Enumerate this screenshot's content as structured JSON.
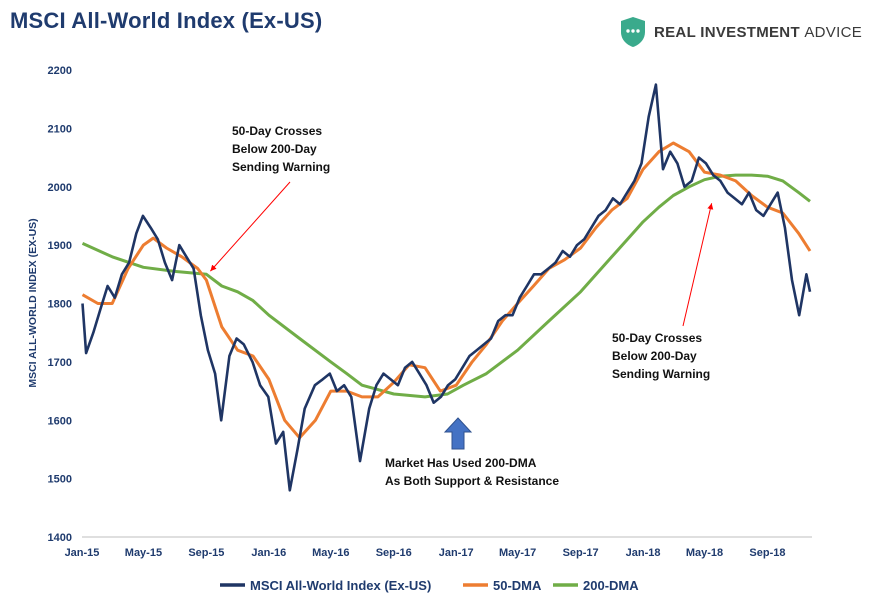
{
  "brand": {
    "name_bold": "REAL INVESTMENT",
    "name_light": "ADVICE"
  },
  "colors": {
    "index": "#1f3564",
    "dma50": "#ed7d31",
    "dma200": "#70ad47",
    "arrow": "#ff0000",
    "blue_arrow": "#4472c4",
    "text": "#1f3b6e"
  },
  "chart_data": {
    "type": "line",
    "title": "MSCI All-World Index (Ex-US)",
    "ylabel": "MSCI ALL-WORLD INDEX (EX-US)",
    "xlabel": "",
    "ylim": [
      1400,
      2200
    ],
    "yticks": [
      1400,
      1500,
      1600,
      1700,
      1800,
      1900,
      2000,
      2100,
      2200
    ],
    "xlim": [
      "2015-01",
      "2018-11"
    ],
    "xticks": [
      "Jan-15",
      "May-15",
      "Sep-15",
      "Jan-16",
      "May-16",
      "Sep-16",
      "Jan-17",
      "May-17",
      "Sep-17",
      "Jan-18",
      "May-18",
      "Sep-18"
    ],
    "grid": false,
    "legend": "bottom",
    "series": [
      {
        "name": "MSCI All-World Index (Ex-US)",
        "color": "#1f3564",
        "points": [
          [
            "2015-01-02",
            1800
          ],
          [
            "2015-01-09",
            1715
          ],
          [
            "2015-01-23",
            1750
          ],
          [
            "2015-02-06",
            1790
          ],
          [
            "2015-02-20",
            1830
          ],
          [
            "2015-03-06",
            1810
          ],
          [
            "2015-03-20",
            1850
          ],
          [
            "2015-04-03",
            1870
          ],
          [
            "2015-04-17",
            1920
          ],
          [
            "2015-04-30",
            1950
          ],
          [
            "2015-05-15",
            1930
          ],
          [
            "2015-05-29",
            1910
          ],
          [
            "2015-06-12",
            1870
          ],
          [
            "2015-06-26",
            1840
          ],
          [
            "2015-07-10",
            1900
          ],
          [
            "2015-07-24",
            1880
          ],
          [
            "2015-08-07",
            1860
          ],
          [
            "2015-08-21",
            1780
          ],
          [
            "2015-09-04",
            1720
          ],
          [
            "2015-09-18",
            1680
          ],
          [
            "2015-09-30",
            1600
          ],
          [
            "2015-10-16",
            1710
          ],
          [
            "2015-10-30",
            1740
          ],
          [
            "2015-11-13",
            1730
          ],
          [
            "2015-11-30",
            1700
          ],
          [
            "2015-12-15",
            1660
          ],
          [
            "2015-12-31",
            1640
          ],
          [
            "2016-01-15",
            1560
          ],
          [
            "2016-01-29",
            1580
          ],
          [
            "2016-02-11",
            1480
          ],
          [
            "2016-02-26",
            1550
          ],
          [
            "2016-03-11",
            1620
          ],
          [
            "2016-03-31",
            1660
          ],
          [
            "2016-04-15",
            1670
          ],
          [
            "2016-04-29",
            1680
          ],
          [
            "2016-05-13",
            1650
          ],
          [
            "2016-05-27",
            1660
          ],
          [
            "2016-06-10",
            1640
          ],
          [
            "2016-06-27",
            1530
          ],
          [
            "2016-07-15",
            1620
          ],
          [
            "2016-07-29",
            1660
          ],
          [
            "2016-08-12",
            1680
          ],
          [
            "2016-08-26",
            1670
          ],
          [
            "2016-09-09",
            1660
          ],
          [
            "2016-09-23",
            1690
          ],
          [
            "2016-10-07",
            1700
          ],
          [
            "2016-10-21",
            1680
          ],
          [
            "2016-11-04",
            1660
          ],
          [
            "2016-11-18",
            1630
          ],
          [
            "2016-12-02",
            1640
          ],
          [
            "2016-12-16",
            1660
          ],
          [
            "2016-12-30",
            1670
          ],
          [
            "2017-01-13",
            1690
          ],
          [
            "2017-01-27",
            1710
          ],
          [
            "2017-02-10",
            1720
          ],
          [
            "2017-02-24",
            1730
          ],
          [
            "2017-03-10",
            1740
          ],
          [
            "2017-03-24",
            1770
          ],
          [
            "2017-04-07",
            1780
          ],
          [
            "2017-04-21",
            1780
          ],
          [
            "2017-05-05",
            1810
          ],
          [
            "2017-05-19",
            1830
          ],
          [
            "2017-06-02",
            1850
          ],
          [
            "2017-06-16",
            1850
          ],
          [
            "2017-06-30",
            1860
          ],
          [
            "2017-07-14",
            1870
          ],
          [
            "2017-07-28",
            1890
          ],
          [
            "2017-08-11",
            1880
          ],
          [
            "2017-08-25",
            1900
          ],
          [
            "2017-09-08",
            1910
          ],
          [
            "2017-09-22",
            1930
          ],
          [
            "2017-10-06",
            1950
          ],
          [
            "2017-10-20",
            1960
          ],
          [
            "2017-11-03",
            1980
          ],
          [
            "2017-11-17",
            1970
          ],
          [
            "2017-12-01",
            1990
          ],
          [
            "2017-12-15",
            2010
          ],
          [
            "2017-12-29",
            2040
          ],
          [
            "2018-01-12",
            2120
          ],
          [
            "2018-01-26",
            2175
          ],
          [
            "2018-02-09",
            2030
          ],
          [
            "2018-02-23",
            2060
          ],
          [
            "2018-03-09",
            2040
          ],
          [
            "2018-03-23",
            2000
          ],
          [
            "2018-04-06",
            2010
          ],
          [
            "2018-04-20",
            2050
          ],
          [
            "2018-05-04",
            2040
          ],
          [
            "2018-05-18",
            2020
          ],
          [
            "2018-06-01",
            2010
          ],
          [
            "2018-06-15",
            1990
          ],
          [
            "2018-06-29",
            1980
          ],
          [
            "2018-07-13",
            1970
          ],
          [
            "2018-07-27",
            1990
          ],
          [
            "2018-08-10",
            1960
          ],
          [
            "2018-08-24",
            1950
          ],
          [
            "2018-09-07",
            1970
          ],
          [
            "2018-09-21",
            1990
          ],
          [
            "2018-10-05",
            1930
          ],
          [
            "2018-10-19",
            1840
          ],
          [
            "2018-11-02",
            1780
          ],
          [
            "2018-11-16",
            1850
          ],
          [
            "2018-11-23",
            1820
          ]
        ]
      },
      {
        "name": "50-DMA",
        "color": "#ed7d31",
        "points": [
          [
            "2015-01-02",
            1815
          ],
          [
            "2015-02-01",
            1800
          ],
          [
            "2015-03-01",
            1800
          ],
          [
            "2015-04-01",
            1860
          ],
          [
            "2015-05-01",
            1900
          ],
          [
            "2015-05-20",
            1912
          ],
          [
            "2015-06-15",
            1895
          ],
          [
            "2015-07-15",
            1880
          ],
          [
            "2015-08-15",
            1860
          ],
          [
            "2015-09-01",
            1840
          ],
          [
            "2015-10-01",
            1760
          ],
          [
            "2015-11-01",
            1720
          ],
          [
            "2015-12-01",
            1710
          ],
          [
            "2016-01-01",
            1670
          ],
          [
            "2016-02-01",
            1600
          ],
          [
            "2016-03-01",
            1570
          ],
          [
            "2016-04-01",
            1600
          ],
          [
            "2016-05-01",
            1650
          ],
          [
            "2016-06-01",
            1650
          ],
          [
            "2016-07-01",
            1640
          ],
          [
            "2016-08-01",
            1640
          ],
          [
            "2016-09-01",
            1665
          ],
          [
            "2016-10-01",
            1695
          ],
          [
            "2016-11-01",
            1690
          ],
          [
            "2016-12-01",
            1650
          ],
          [
            "2017-01-01",
            1660
          ],
          [
            "2017-02-01",
            1700
          ],
          [
            "2017-03-01",
            1730
          ],
          [
            "2017-04-01",
            1770
          ],
          [
            "2017-05-01",
            1800
          ],
          [
            "2017-06-01",
            1830
          ],
          [
            "2017-07-01",
            1860
          ],
          [
            "2017-08-01",
            1875
          ],
          [
            "2017-09-01",
            1895
          ],
          [
            "2017-10-01",
            1930
          ],
          [
            "2017-11-01",
            1960
          ],
          [
            "2017-12-01",
            1980
          ],
          [
            "2018-01-01",
            2030
          ],
          [
            "2018-02-01",
            2060
          ],
          [
            "2018-03-01",
            2075
          ],
          [
            "2018-04-01",
            2060
          ],
          [
            "2018-05-01",
            2025
          ],
          [
            "2018-06-01",
            2020
          ],
          [
            "2018-07-01",
            2010
          ],
          [
            "2018-08-01",
            1985
          ],
          [
            "2018-09-01",
            1965
          ],
          [
            "2018-10-01",
            1955
          ],
          [
            "2018-11-01",
            1920
          ],
          [
            "2018-11-23",
            1890
          ]
        ]
      },
      {
        "name": "200-DMA",
        "color": "#70ad47",
        "points": [
          [
            "2015-01-02",
            1903
          ],
          [
            "2015-03-01",
            1880
          ],
          [
            "2015-05-01",
            1862
          ],
          [
            "2015-07-01",
            1855
          ],
          [
            "2015-09-01",
            1850
          ],
          [
            "2015-10-01",
            1830
          ],
          [
            "2015-11-01",
            1820
          ],
          [
            "2015-12-01",
            1805
          ],
          [
            "2016-01-01",
            1780
          ],
          [
            "2016-03-01",
            1740
          ],
          [
            "2016-05-01",
            1700
          ],
          [
            "2016-06-01",
            1680
          ],
          [
            "2016-07-01",
            1660
          ],
          [
            "2016-09-01",
            1645
          ],
          [
            "2016-11-01",
            1640
          ],
          [
            "2016-12-15",
            1645
          ],
          [
            "2017-01-15",
            1660
          ],
          [
            "2017-03-01",
            1680
          ],
          [
            "2017-05-01",
            1720
          ],
          [
            "2017-07-01",
            1770
          ],
          [
            "2017-09-01",
            1820
          ],
          [
            "2017-11-01",
            1880
          ],
          [
            "2018-01-01",
            1940
          ],
          [
            "2018-02-01",
            1965
          ],
          [
            "2018-03-01",
            1985
          ],
          [
            "2018-04-01",
            2000
          ],
          [
            "2018-05-01",
            2012
          ],
          [
            "2018-06-01",
            2018
          ],
          [
            "2018-07-01",
            2020
          ],
          [
            "2018-08-01",
            2020
          ],
          [
            "2018-09-01",
            2018
          ],
          [
            "2018-10-01",
            2010
          ],
          [
            "2018-11-01",
            1990
          ],
          [
            "2018-11-23",
            1975
          ]
        ]
      }
    ],
    "annotations": [
      {
        "lines": [
          "50-Day Crosses",
          "Below 200-Day",
          "Sending Warning"
        ],
        "arrow_to": [
          "2015-09-01",
          1852
        ]
      },
      {
        "lines": [
          "50-Day Crosses",
          "Below 200-Day",
          "Sending Warning"
        ],
        "arrow_to": [
          "2018-05-15",
          1982
        ]
      },
      {
        "lines": [
          "Market Has Used 200-DMA",
          "As Both Support & Resistance"
        ],
        "arrow_to": [
          "2016-12-15",
          1620
        ]
      }
    ]
  }
}
